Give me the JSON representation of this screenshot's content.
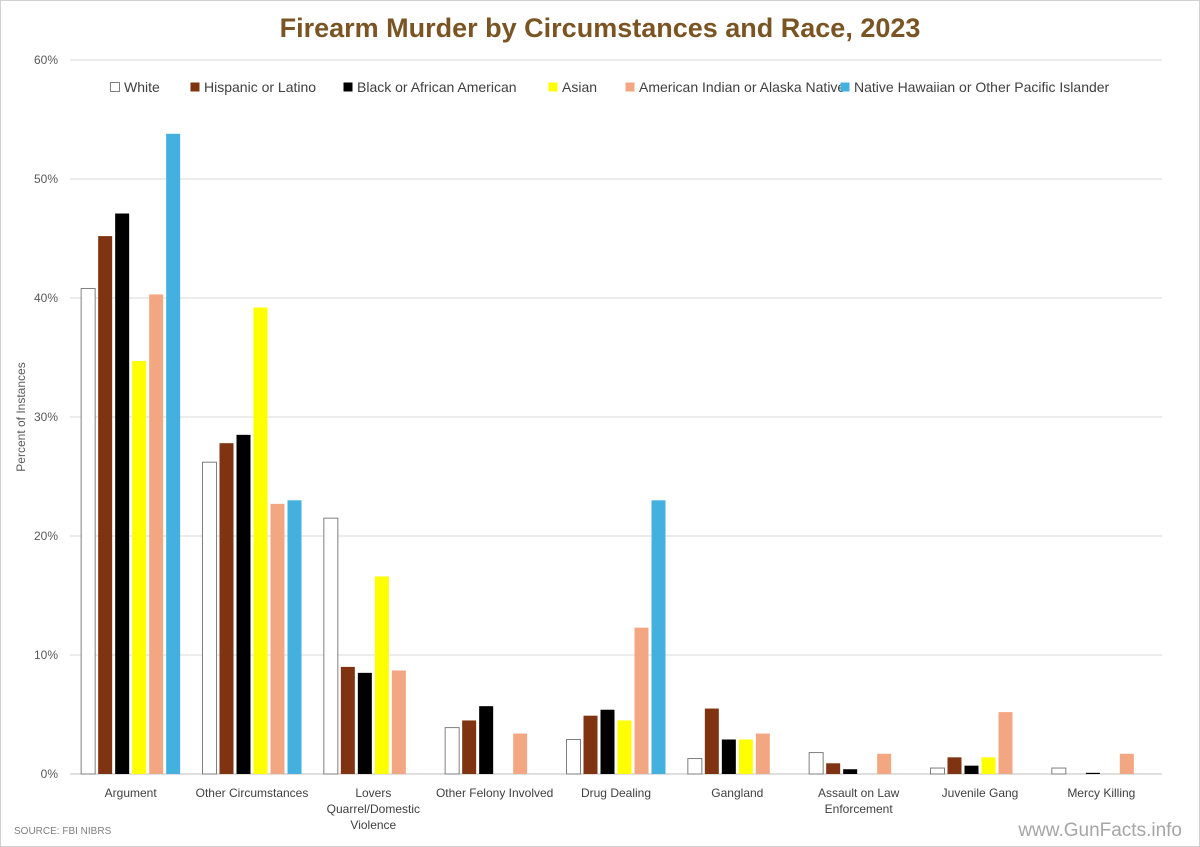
{
  "chart_data": {
    "type": "bar",
    "title": "Firearm Murder by Circumstances and Race, 2023",
    "xlabel": "",
    "ylabel": "Percent of Instances",
    "ylim": [
      0,
      60
    ],
    "yticks": [
      "0%",
      "10%",
      "20%",
      "30%",
      "40%",
      "50%",
      "60%"
    ],
    "grid": true,
    "legend_position": "top",
    "categories": [
      [
        "Argument"
      ],
      [
        "Other Circumstances"
      ],
      [
        "Lovers",
        "Quarrel/Domestic",
        "Violence"
      ],
      [
        "Other Felony Involved"
      ],
      [
        "Drug Dealing"
      ],
      [
        "Gangland"
      ],
      [
        "Assault on Law",
        "Enforcement"
      ],
      [
        "Juvenile Gang"
      ],
      [
        "Mercy Killing"
      ]
    ],
    "series": [
      {
        "name": "White",
        "color": "#ffffff",
        "stroke": "#7f7f7f",
        "values": [
          40.8,
          26.2,
          21.5,
          3.9,
          2.9,
          1.3,
          1.8,
          0.5,
          0.5
        ]
      },
      {
        "name": "Hispanic or Latino",
        "color": "#7f3310",
        "values": [
          45.2,
          27.8,
          9.0,
          4.5,
          4.9,
          5.5,
          0.9,
          1.4,
          0
        ]
      },
      {
        "name": "Black or African American",
        "color": "#000000",
        "values": [
          47.1,
          28.5,
          8.5,
          5.7,
          5.4,
          2.9,
          0.4,
          0.7,
          0.1
        ]
      },
      {
        "name": "Asian",
        "color": "#ffff00",
        "values": [
          34.7,
          39.2,
          16.6,
          0,
          4.5,
          2.9,
          0,
          1.4,
          0
        ]
      },
      {
        "name": "American Indian or Alaska Native",
        "color": "#f2a782",
        "values": [
          40.3,
          22.7,
          8.7,
          3.4,
          12.3,
          3.4,
          1.7,
          5.2,
          1.7
        ]
      },
      {
        "name": "Native Hawaiian or Other Pacific Islander",
        "color": "#44b0e0",
        "values": [
          53.8,
          23.0,
          0,
          0,
          23.0,
          0,
          0,
          0,
          0
        ]
      }
    ]
  },
  "source": "SOURCE: FBI NIBRS",
  "watermark": "www.GunFacts.info"
}
